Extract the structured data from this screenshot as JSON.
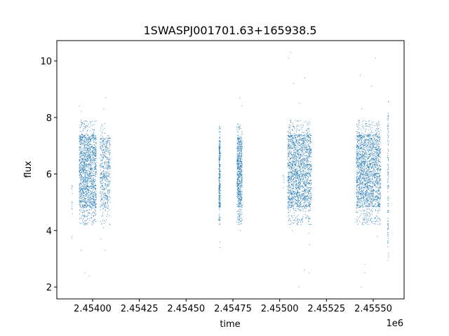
{
  "chart_data": {
    "type": "scatter",
    "title": "1SWASPJ001701.63+165938.5",
    "xlabel": "time",
    "ylabel": "flux",
    "x_offset_label": "1e6",
    "xlim": [
      2453809,
      2455665
    ],
    "ylim": [
      1.58,
      10.72
    ],
    "xticks": [
      2454000,
      2454250,
      2454500,
      2454750,
      2455000,
      2455250,
      2455500
    ],
    "xtick_labels": [
      "2.45400",
      "2.45425",
      "2.45450",
      "2.45475",
      "2.45500",
      "2.45525",
      "2.45550"
    ],
    "yticks": [
      2,
      4,
      6,
      8,
      10
    ],
    "ytick_labels": [
      "2",
      "4",
      "6",
      "8",
      "10"
    ],
    "grid": false,
    "marker_color": "#1f77b4",
    "observing_seasons": [
      {
        "t_start": 2453888,
        "t_end": 2453893,
        "flux_core": [
          4.3,
          5.8
        ],
        "count": 12,
        "outliers": [
          3.8,
          3.75
        ]
      },
      {
        "t_start": 2453929,
        "t_end": 2454020,
        "flux_core": [
          4.8,
          7.4
        ],
        "count": 1500,
        "outliers": [
          8.4,
          8.2,
          2.5,
          2.4,
          3.3,
          4.5,
          7.9
        ]
      },
      {
        "t_start": 2454040,
        "t_end": 2454095,
        "flux_core": [
          4.8,
          7.3
        ],
        "count": 500,
        "outliers": [
          8.7,
          8.3,
          4.1,
          3.3,
          3.7
        ]
      },
      {
        "t_start": 2454675,
        "t_end": 2454683,
        "flux_core": [
          4.8,
          7.2
        ],
        "count": 300,
        "outliers": [
          7.6,
          3.6,
          3.4
        ]
      },
      {
        "t_start": 2454772,
        "t_end": 2454800,
        "flux_core": [
          4.8,
          7.3
        ],
        "count": 650,
        "outliers": [
          8.7,
          8.4,
          4.4,
          4.0
        ]
      },
      {
        "t_start": 2455018,
        "t_end": 2455024,
        "flux_core": [
          5.3,
          6.1
        ],
        "count": 6,
        "outliers": []
      },
      {
        "t_start": 2455043,
        "t_end": 2455170,
        "flux_core": [
          4.8,
          7.4
        ],
        "count": 1800,
        "outliers": [
          10.3,
          10.1,
          9.2,
          9.4,
          8.5,
          2.6,
          2.5,
          2.0,
          3.5,
          3.9,
          4.0
        ]
      },
      {
        "t_start": 2455410,
        "t_end": 2455540,
        "flux_core": [
          4.8,
          7.4
        ],
        "count": 1900,
        "outliers": [
          10.1,
          9.5,
          9.1,
          8.3,
          2.5,
          2.8,
          2.0,
          4.2,
          3.8
        ]
      },
      {
        "t_start": 2455577,
        "t_end": 2455582,
        "flux_core": [
          3.5,
          8.1
        ],
        "count": 120,
        "outliers": []
      }
    ]
  }
}
